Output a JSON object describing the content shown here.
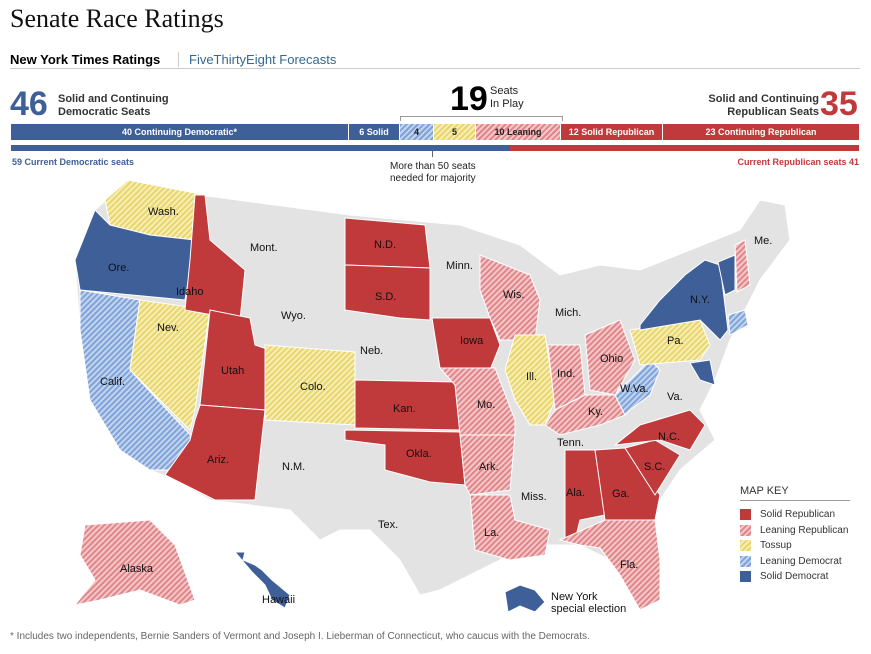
{
  "title": "Senate Race Ratings",
  "tabs": [
    {
      "label": "New York Times Ratings",
      "active": true
    },
    {
      "label": "FiveThirtyEight Forecasts",
      "active": false
    }
  ],
  "summary": {
    "dem_count": "46",
    "dem_label_1": "Solid and Continuing",
    "dem_label_2": "Democratic Seats",
    "play_count": "19",
    "play_label_1": "Seats",
    "play_label_2": "In Play",
    "rep_count": "35",
    "rep_label_1": "Solid and Continuing",
    "rep_label_2": "Republican Seats"
  },
  "bar": [
    {
      "label": "40 Continuing Democratic*",
      "seats": 40,
      "category": "continuing-dem"
    },
    {
      "label": "6 Solid",
      "seats": 6,
      "category": "solid-dem"
    },
    {
      "label": "4",
      "seats": 4,
      "category": "lean-dem"
    },
    {
      "label": "5",
      "seats": 5,
      "category": "tossup"
    },
    {
      "label": "10 Leaning",
      "seats": 10,
      "category": "lean-rep"
    },
    {
      "label": "12 Solid Republican",
      "seats": 12,
      "category": "solid-rep"
    },
    {
      "label": "23 Continuing Republican",
      "seats": 23,
      "category": "continuing-rep"
    }
  ],
  "current": {
    "dem_label": "59 Current Democratic seats",
    "dem_seats": 59,
    "rep_label": "Current Republican seats 41",
    "rep_seats": 41,
    "majority_note_1": "More than 50 seats",
    "majority_note_2": "needed for majority"
  },
  "colors": {
    "solid_dem": "#3f5f99",
    "solid_rep": "#c0393b",
    "lean_dem": "#8fb0e0",
    "lean_rep": "#e99a9c",
    "tossup": "#efdf86",
    "no_race": "#e3e3e3"
  },
  "states": [
    {
      "name": "Wash.",
      "rating": "tossup"
    },
    {
      "name": "Ore.",
      "rating": "solid-dem"
    },
    {
      "name": "Calif.",
      "rating": "lean-dem"
    },
    {
      "name": "Nev.",
      "rating": "tossup"
    },
    {
      "name": "Idaho",
      "rating": "solid-rep"
    },
    {
      "name": "Utah",
      "rating": "solid-rep"
    },
    {
      "name": "Ariz.",
      "rating": "solid-rep"
    },
    {
      "name": "Colo.",
      "rating": "tossup"
    },
    {
      "name": "N.D.",
      "rating": "solid-rep"
    },
    {
      "name": "S.D.",
      "rating": "solid-rep"
    },
    {
      "name": "Kan.",
      "rating": "solid-rep"
    },
    {
      "name": "Okla.",
      "rating": "solid-rep"
    },
    {
      "name": "Iowa",
      "rating": "solid-rep"
    },
    {
      "name": "Wis.",
      "rating": "lean-rep"
    },
    {
      "name": "Mo.",
      "rating": "lean-rep"
    },
    {
      "name": "Ark.",
      "rating": "lean-rep"
    },
    {
      "name": "La.",
      "rating": "lean-rep"
    },
    {
      "name": "Ill.",
      "rating": "tossup"
    },
    {
      "name": "Ind.",
      "rating": "lean-rep"
    },
    {
      "name": "Ohio",
      "rating": "lean-rep"
    },
    {
      "name": "Ky.",
      "rating": "lean-rep"
    },
    {
      "name": "Ala.",
      "rating": "solid-rep"
    },
    {
      "name": "Ga.",
      "rating": "solid-rep"
    },
    {
      "name": "S.C.",
      "rating": "solid-rep"
    },
    {
      "name": "N.C.",
      "rating": "solid-rep"
    },
    {
      "name": "Fla.",
      "rating": "lean-rep"
    },
    {
      "name": "W.Va.",
      "rating": "lean-dem"
    },
    {
      "name": "Pa.",
      "rating": "tossup"
    },
    {
      "name": "N.Y.",
      "rating": "solid-dem"
    },
    {
      "name": "Alaska",
      "rating": "lean-rep"
    },
    {
      "name": "Hawaii",
      "rating": "solid-dem"
    },
    {
      "name": "Mont.",
      "rating": "none"
    },
    {
      "name": "Wyo.",
      "rating": "none"
    },
    {
      "name": "N.M.",
      "rating": "none"
    },
    {
      "name": "Tex.",
      "rating": "none"
    },
    {
      "name": "Neb.",
      "rating": "none"
    },
    {
      "name": "Minn.",
      "rating": "none"
    },
    {
      "name": "Mich.",
      "rating": "none"
    },
    {
      "name": "Miss.",
      "rating": "none"
    },
    {
      "name": "Tenn.",
      "rating": "none"
    },
    {
      "name": "Va.",
      "rating": "none"
    },
    {
      "name": "Me.",
      "rating": "none"
    }
  ],
  "ny_special": {
    "label_1": "New York",
    "label_2": "special election",
    "rating": "solid-dem"
  },
  "map_key": {
    "title": "MAP KEY",
    "items": [
      "Solid Republican",
      "Leaning Republican",
      "Tossup",
      "Leaning Democrat",
      "Solid Democrat"
    ]
  },
  "footnote": "* Includes two independents, Bernie Sanders of Vermont and Joseph I. Lieberman of Connecticut, who caucus with the Democrats."
}
